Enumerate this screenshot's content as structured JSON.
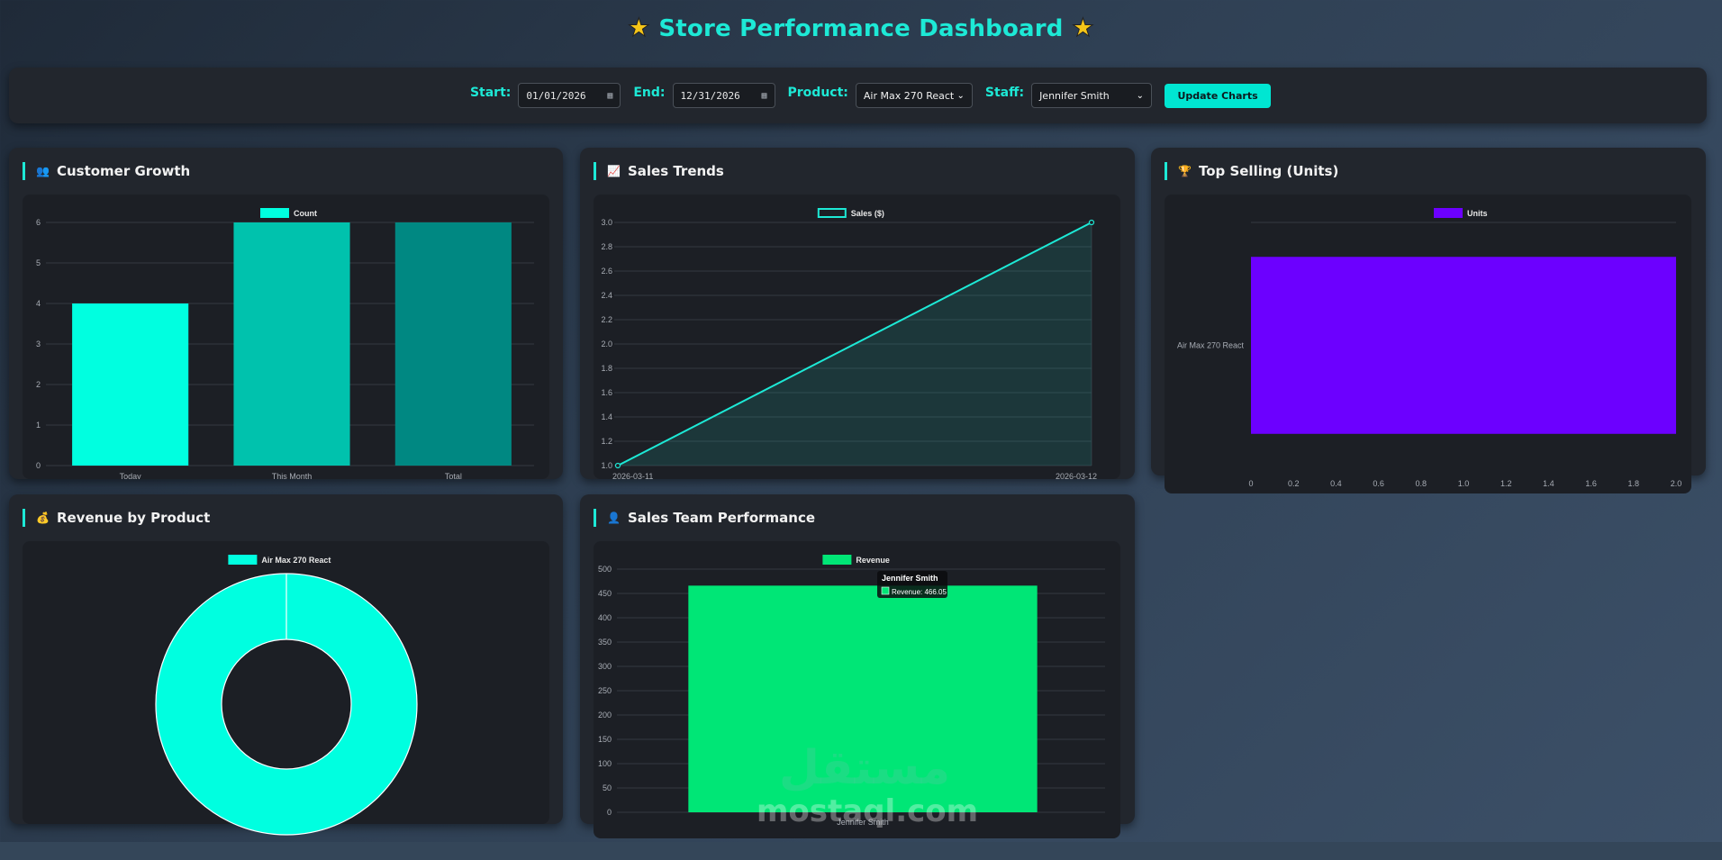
{
  "header": {
    "title": "Store Performance Dashboard",
    "star_icon": "star-icon"
  },
  "filters": {
    "start_label": "Start:",
    "start_value": "01/01/2026",
    "end_label": "End:",
    "end_value": "12/31/2026",
    "product_label": "Product:",
    "product_value": "Air Max 270 React",
    "staff_label": "Staff:",
    "staff_value": "Jennifer Smith",
    "update_button": "Update Charts"
  },
  "cards": {
    "customer_growth": {
      "title": "Customer Growth",
      "icon": "users-icon"
    },
    "sales_trends": {
      "title": "Sales Trends",
      "icon": "chart-up-icon"
    },
    "top_selling": {
      "title": "Top Selling (Units)",
      "icon": "trophy-icon"
    },
    "revenue_by_product": {
      "title": "Revenue by Product",
      "icon": "money-bag-icon"
    },
    "sales_team": {
      "title": "Sales Team Performance",
      "icon": "person-icon"
    }
  },
  "tooltip": {
    "title": "Jennifer Smith",
    "label": "Revenue: 466.05"
  },
  "watermark": {
    "arabic": "مستقل",
    "text": "mostaql.com"
  },
  "colors": {
    "accent": "#1de9d6",
    "teal_1": "#00ffe0",
    "teal_2": "#00c2ad",
    "teal_3": "#008882",
    "purple": "#6c00ff",
    "green": "#00e676"
  },
  "chart_data": [
    {
      "id": "customer_growth",
      "type": "bar",
      "categories": [
        "Today",
        "This Month",
        "Total"
      ],
      "series": [
        {
          "name": "Count",
          "values": [
            4,
            6,
            6
          ]
        }
      ],
      "ylim": [
        0,
        6
      ],
      "yticks": [
        0,
        1,
        2,
        3,
        4,
        5,
        6
      ],
      "legend": "top",
      "grid": true
    },
    {
      "id": "sales_trends",
      "type": "line",
      "x": [
        "2026-03-11",
        "2026-03-12"
      ],
      "series": [
        {
          "name": "Sales ($)",
          "values": [
            1.0,
            3.0
          ]
        }
      ],
      "ylim": [
        1.0,
        3.0
      ],
      "yticks": [
        "1.0",
        "1.2",
        "1.4",
        "1.6",
        "1.8",
        "2.0",
        "2.2",
        "2.4",
        "2.6",
        "2.8",
        "3.0"
      ],
      "legend": "top",
      "grid": true,
      "fill": true
    },
    {
      "id": "top_selling",
      "type": "bar",
      "orientation": "horizontal",
      "categories": [
        "Air Max 270 React"
      ],
      "series": [
        {
          "name": "Units",
          "values": [
            2
          ]
        }
      ],
      "xlim": [
        0,
        2.0
      ],
      "xticks": [
        "0",
        "0.2",
        "0.4",
        "0.6",
        "0.8",
        "1.0",
        "1.2",
        "1.4",
        "1.6",
        "1.8",
        "2.0"
      ],
      "legend": "top",
      "grid": true
    },
    {
      "id": "revenue_by_product",
      "type": "pie",
      "variant": "doughnut",
      "categories": [
        "Air Max 270 React"
      ],
      "values": [
        466.05
      ],
      "legend": "top"
    },
    {
      "id": "sales_team",
      "type": "bar",
      "categories": [
        "Jennifer Smith"
      ],
      "series": [
        {
          "name": "Revenue",
          "values": [
            466.05
          ]
        }
      ],
      "ylim": [
        0,
        500
      ],
      "yticks": [
        0,
        50,
        100,
        150,
        200,
        250,
        300,
        350,
        400,
        450,
        500
      ],
      "legend": "top",
      "grid": true
    }
  ]
}
